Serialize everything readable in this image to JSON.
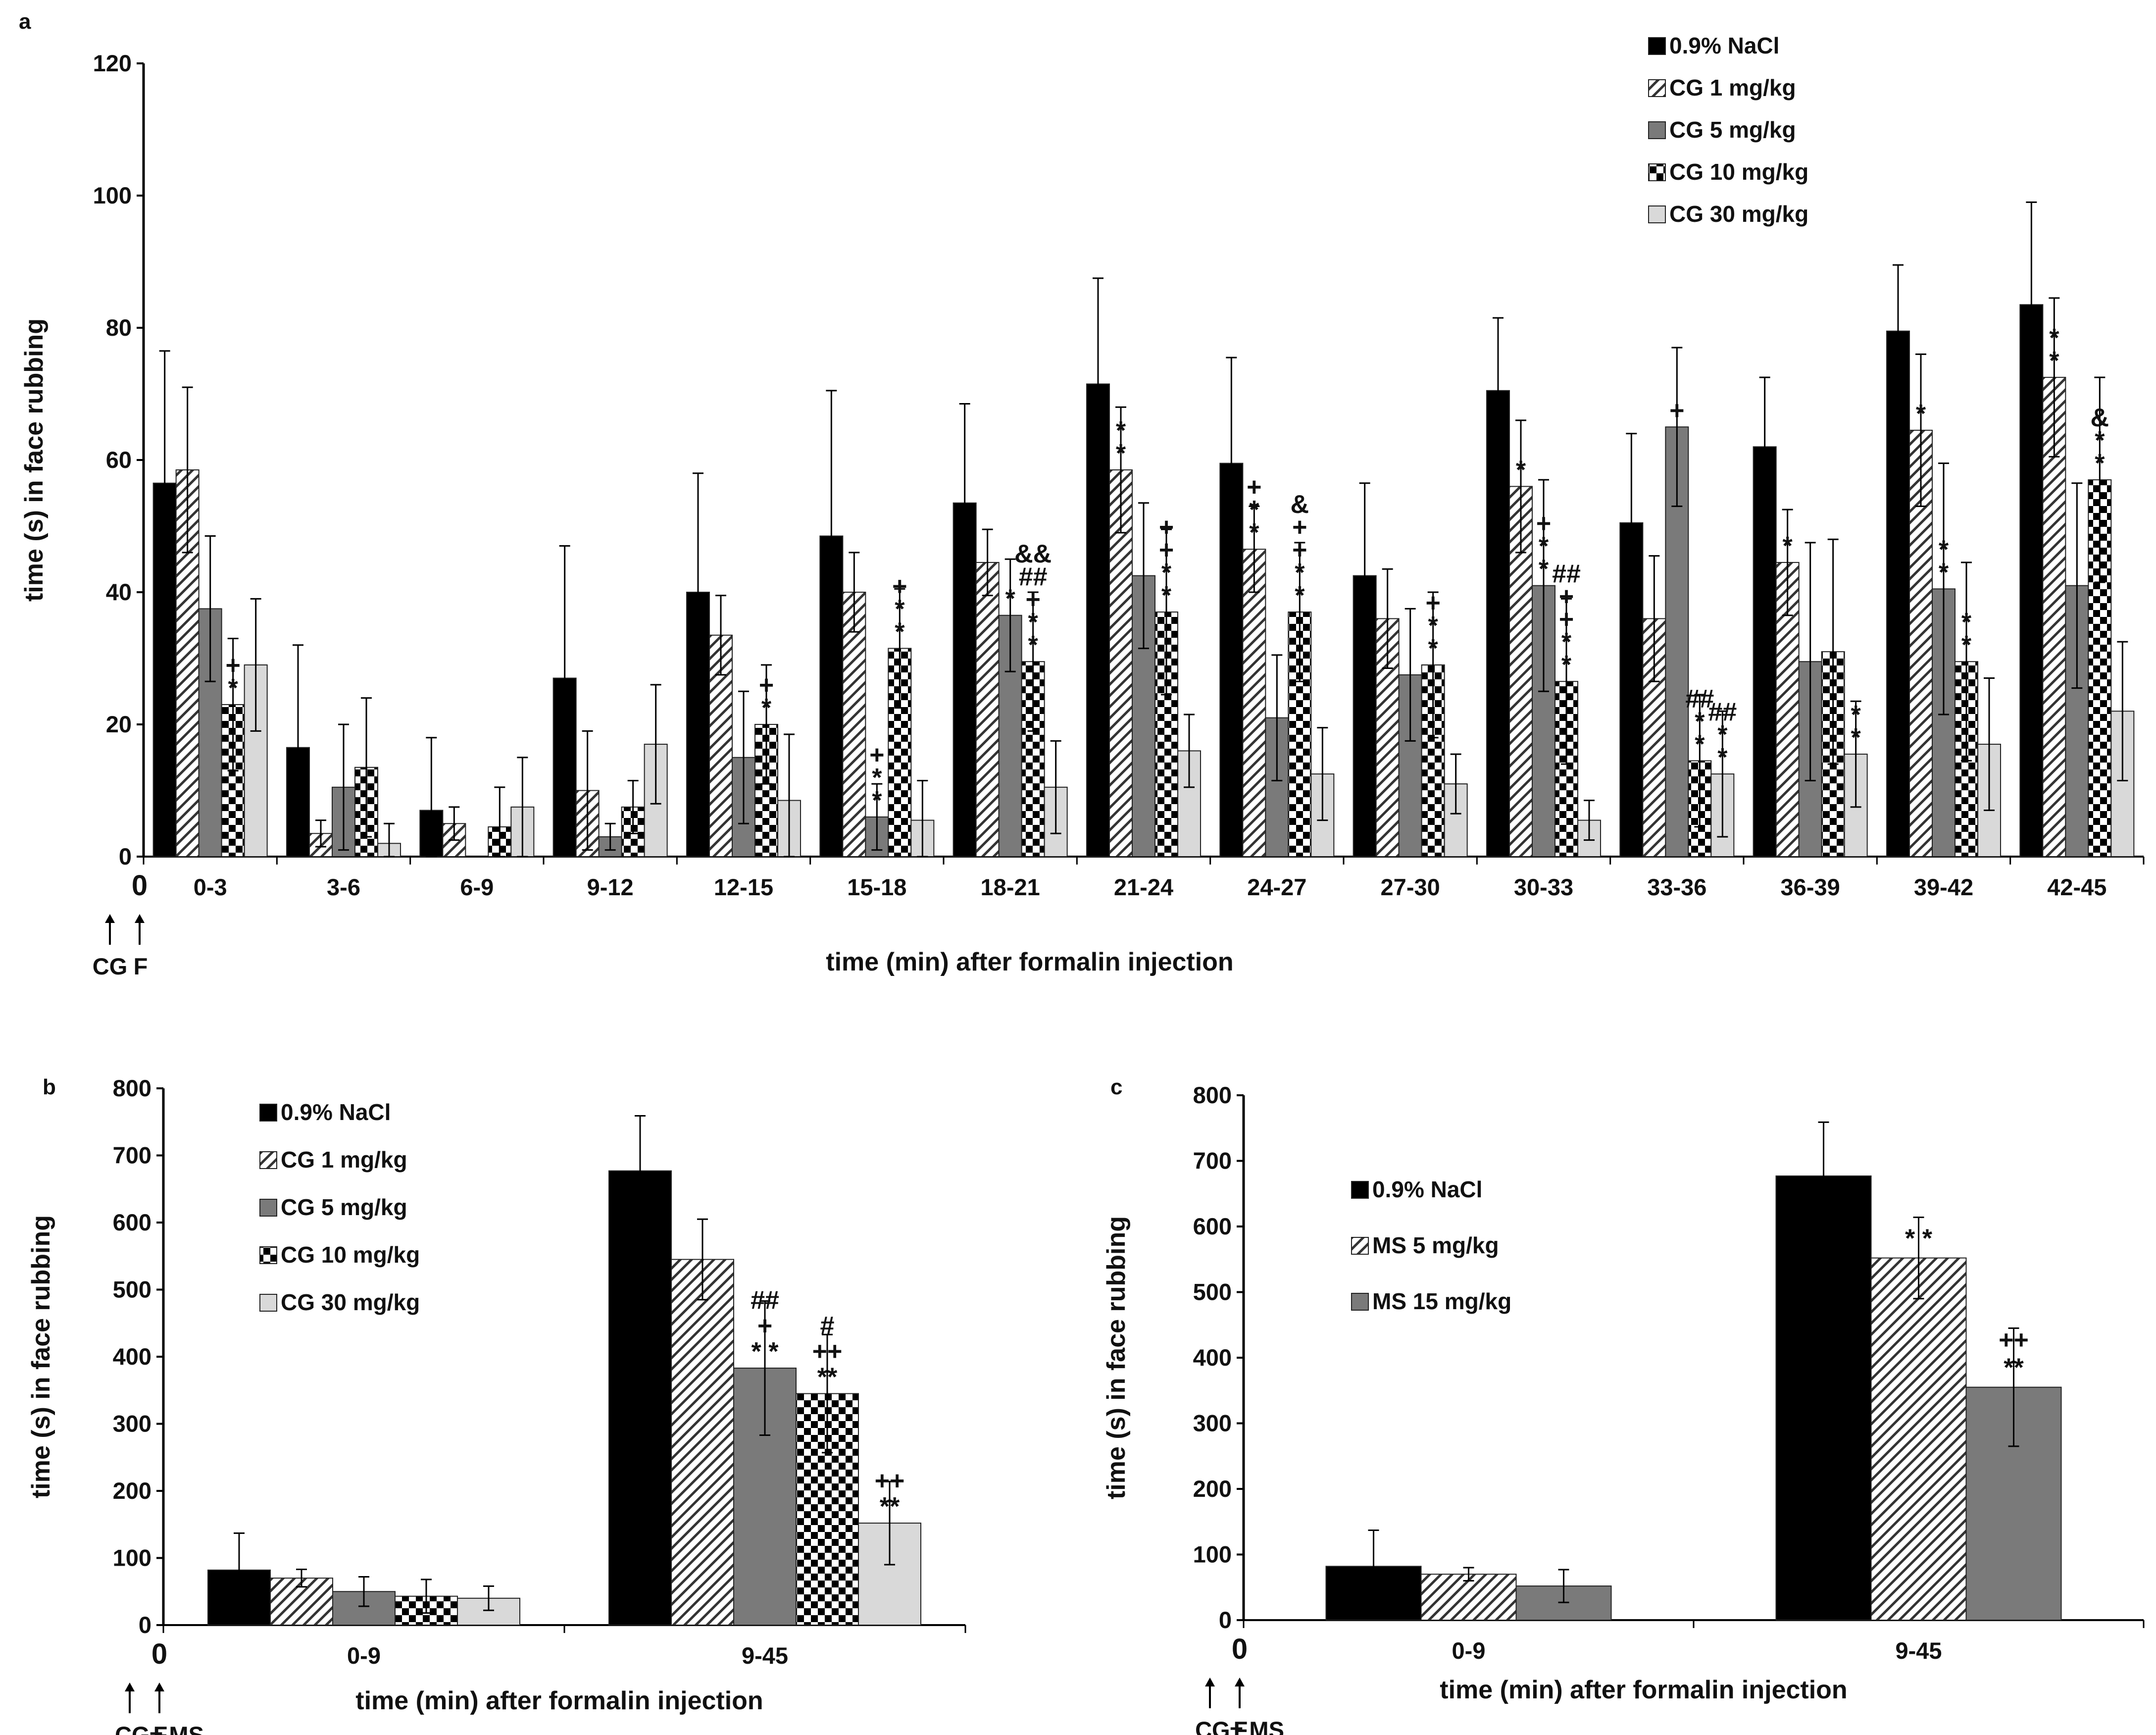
{
  "chart_data": [
    {
      "panel": "a",
      "type": "bar",
      "xlabel": "time (min) after formalin injection",
      "ylabel": "time (s) in face rubbing",
      "ylim": [
        0,
        120
      ],
      "yticks": [
        "0",
        "20",
        "40",
        "60",
        "80",
        "100",
        "120"
      ],
      "categories": [
        "0-3",
        "3-6",
        "6-9",
        "9-12",
        "12-15",
        "15-18",
        "18-21",
        "21-24",
        "24-27",
        "27-30",
        "30-33",
        "33-36",
        "36-39",
        "39-42",
        "42-45"
      ],
      "origin_label": "0",
      "arrow_labels": [
        "CG",
        "F"
      ],
      "series": [
        {
          "name": "0.9% NaCl",
          "pattern": "black",
          "values": [
            56.5,
            16.5,
            7,
            27,
            40,
            48.5,
            53.5,
            71.5,
            59.5,
            42.5,
            70.5,
            50.5,
            62,
            79.5,
            83.5
          ],
          "errors": [
            20,
            15.5,
            11,
            20,
            18,
            22,
            15,
            16,
            16,
            14,
            11,
            13.5,
            10.5,
            10,
            15.5
          ],
          "annotations": [
            "",
            "",
            "",
            "",
            "",
            "",
            "",
            "",
            "",
            "",
            "",
            "",
            "",
            "",
            ""
          ]
        },
        {
          "name": "CG 1 mg/kg",
          "pattern": "hatch",
          "values": [
            58.5,
            3.5,
            5,
            10,
            33.5,
            40,
            44.5,
            58.5,
            46.5,
            36,
            56,
            36,
            44.5,
            64.5,
            72.5
          ],
          "errors": [
            12.5,
            2,
            2.5,
            9,
            6,
            6,
            5,
            9.5,
            6.5,
            7.5,
            10,
            9.5,
            8,
            11.5,
            12
          ],
          "annotations": [
            "",
            "",
            "",
            "",
            "",
            "",
            "",
            "*\n*",
            "+\n*\n*",
            "",
            "*",
            "",
            "*",
            "*",
            "*\n*"
          ]
        },
        {
          "name": "CG 5 mg/kg",
          "pattern": "gray",
          "values": [
            37.5,
            10.5,
            0,
            3,
            15,
            6,
            36.5,
            42.5,
            21,
            27.5,
            41,
            65,
            29.5,
            40.5,
            41
          ],
          "errors": [
            11,
            9.5,
            0,
            2,
            10,
            5,
            8.5,
            11,
            9.5,
            10,
            16,
            12,
            18,
            19,
            15.5
          ],
          "annotations": [
            "",
            "",
            "",
            "",
            "",
            "+\n*\n*",
            "*",
            "",
            "",
            "",
            "+\n*\n*",
            "+",
            "",
            "*\n*",
            ""
          ]
        },
        {
          "name": "CG 10 mg/kg",
          "pattern": "check",
          "values": [
            23,
            13.5,
            4.5,
            7.5,
            20,
            31.5,
            29.5,
            37,
            37,
            29,
            26.5,
            14.5,
            31,
            29.5,
            57
          ],
          "errors": [
            10,
            10.5,
            6,
            4,
            9,
            9,
            10.5,
            12.5,
            10.5,
            11,
            12.5,
            10,
            17,
            15,
            15.5
          ],
          "annotations": [
            "+\n*",
            "",
            "",
            "",
            "+\n*",
            "+\n*\n*",
            "&&\n##\n+\n*\n*",
            "+\n+\n*\n*",
            "&\n+\n+\n*\n*",
            "+\n*\n*",
            "##\n+\n+\n*\n*",
            "##\n*\n*",
            "",
            "*\n*",
            "&\n*\n*"
          ]
        },
        {
          "name": "CG 30 mg/kg",
          "pattern": "light",
          "values": [
            29,
            2,
            7.5,
            17,
            8.5,
            5.5,
            10.5,
            16,
            12.5,
            11,
            5.5,
            12.5,
            15.5,
            17,
            22
          ],
          "errors": [
            10,
            3,
            7.5,
            9,
            10,
            6,
            7,
            5.5,
            7,
            4.5,
            3,
            9.5,
            8,
            10,
            10.5
          ],
          "annotations": [
            "",
            "",
            "",
            "",
            "",
            "",
            "",
            "",
            "",
            "",
            "",
            "##\n*\n*",
            "*\n*",
            "",
            ""
          ]
        }
      ],
      "legend": [
        "0.9% NaCl",
        "CG 1 mg/kg",
        "CG 5 mg/kg",
        "CG 10 mg/kg",
        "CG 30 mg/kg"
      ]
    },
    {
      "panel": "b",
      "type": "bar",
      "xlabel": "time (min) after formalin injection",
      "ylabel": "time (s) in face rubbing",
      "ylim": [
        0,
        800
      ],
      "yticks": [
        "0",
        "100",
        "200",
        "300",
        "400",
        "500",
        "600",
        "700",
        "800"
      ],
      "categories": [
        "0-9",
        "9-45"
      ],
      "origin_label": "0",
      "arrow_labels": [
        "CG± MS",
        "F"
      ],
      "series": [
        {
          "name": "0.9% NaCl",
          "pattern": "black",
          "values": [
            82,
            677
          ],
          "errors": [
            55,
            82
          ],
          "annotations": [
            "",
            ""
          ]
        },
        {
          "name": "CG 1 mg/kg",
          "pattern": "hatch",
          "values": [
            70,
            545
          ],
          "errors": [
            13,
            60
          ],
          "annotations": [
            "",
            ""
          ]
        },
        {
          "name": "CG 5 mg/kg",
          "pattern": "gray",
          "values": [
            50,
            383
          ],
          "errors": [
            22,
            100
          ],
          "annotations": [
            "",
            "##\n+\n* *"
          ]
        },
        {
          "name": "CG 10 mg/kg",
          "pattern": "check",
          "values": [
            43,
            345
          ],
          "errors": [
            25,
            88
          ],
          "annotations": [
            "",
            "#\n++\n**"
          ]
        },
        {
          "name": "CG 30 mg/kg",
          "pattern": "light",
          "values": [
            40,
            152
          ],
          "errors": [
            18,
            62
          ],
          "annotations": [
            "",
            "++\n**"
          ]
        }
      ],
      "legend": [
        "0.9% NaCl",
        "CG 1 mg/kg",
        "CG 5 mg/kg",
        "CG 10 mg/kg",
        "CG 30 mg/kg"
      ]
    },
    {
      "panel": "c",
      "type": "bar",
      "xlabel": "time (min) after formalin injection",
      "ylabel": "time (s) in face rubbing",
      "ylim": [
        0,
        800
      ],
      "yticks": [
        "0",
        "100",
        "200",
        "300",
        "400",
        "500",
        "600",
        "700",
        "800"
      ],
      "categories": [
        "0-9",
        "9-45"
      ],
      "origin_label": "0",
      "arrow_labels": [
        "CG± MS",
        "F"
      ],
      "series": [
        {
          "name": "0.9% NaCl",
          "pattern": "black",
          "values": [
            82,
            677
          ],
          "errors": [
            55,
            82
          ],
          "annotations": [
            "",
            ""
          ]
        },
        {
          "name": "MS 5 mg/kg",
          "pattern": "hatch",
          "values": [
            70,
            552
          ],
          "errors": [
            10,
            62
          ],
          "annotations": [
            "",
            "* *"
          ]
        },
        {
          "name": "MS 15 mg/kg",
          "pattern": "gray",
          "values": [
            52,
            355
          ],
          "errors": [
            25,
            90
          ],
          "annotations": [
            "",
            "++\n**"
          ]
        }
      ],
      "legend": [
        "0.9% NaCl",
        "MS 5 mg/kg",
        "MS 15 mg/kg"
      ]
    }
  ]
}
